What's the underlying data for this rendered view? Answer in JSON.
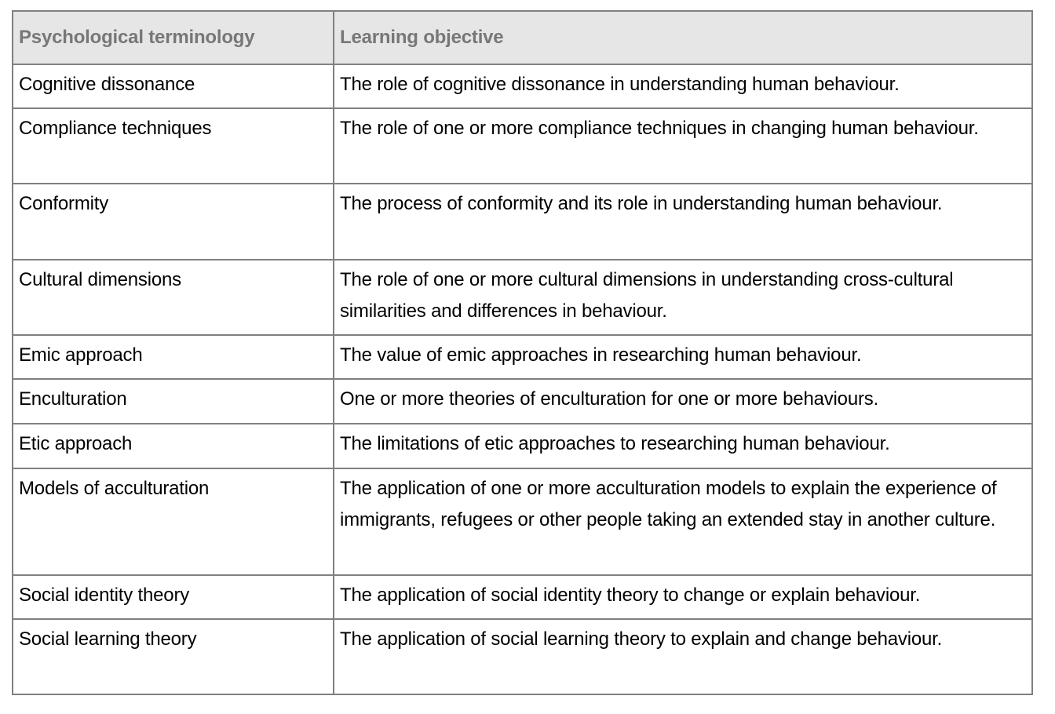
{
  "table": {
    "headers": [
      "Psychological terminology",
      "Learning objective"
    ],
    "rows": [
      {
        "term": "Cognitive dissonance",
        "objective": "The role of cognitive dissonance in understanding human behaviour."
      },
      {
        "term": "Compliance techniques",
        "objective": "The role of one or more compliance techniques in changing human behaviour."
      },
      {
        "term": "Conformity",
        "objective": "The process of conformity and its role in understanding human behaviour."
      },
      {
        "term": "Cultural dimensions",
        "objective": "The role of one or more cultural dimensions in understanding cross-cultural similarities and differences in behaviour."
      },
      {
        "term": "Emic approach",
        "objective": "The value of emic approaches in researching human behaviour."
      },
      {
        "term": "Enculturation",
        "objective": "One or more theories of enculturation for one or more behaviours."
      },
      {
        "term": "Etic approach",
        "objective": "The limitations of etic approaches to researching human behaviour."
      },
      {
        "term": "Models of acculturation",
        "objective": "The application of one or more acculturation models to explain the experience of immigrants, refugees or other people taking an extended stay in another culture."
      },
      {
        "term": "Social identity theory",
        "objective": "The application of social identity theory to change or explain behaviour."
      },
      {
        "term": "Social learning theory",
        "objective": "The application of social learning theory to explain and change behaviour."
      }
    ]
  }
}
